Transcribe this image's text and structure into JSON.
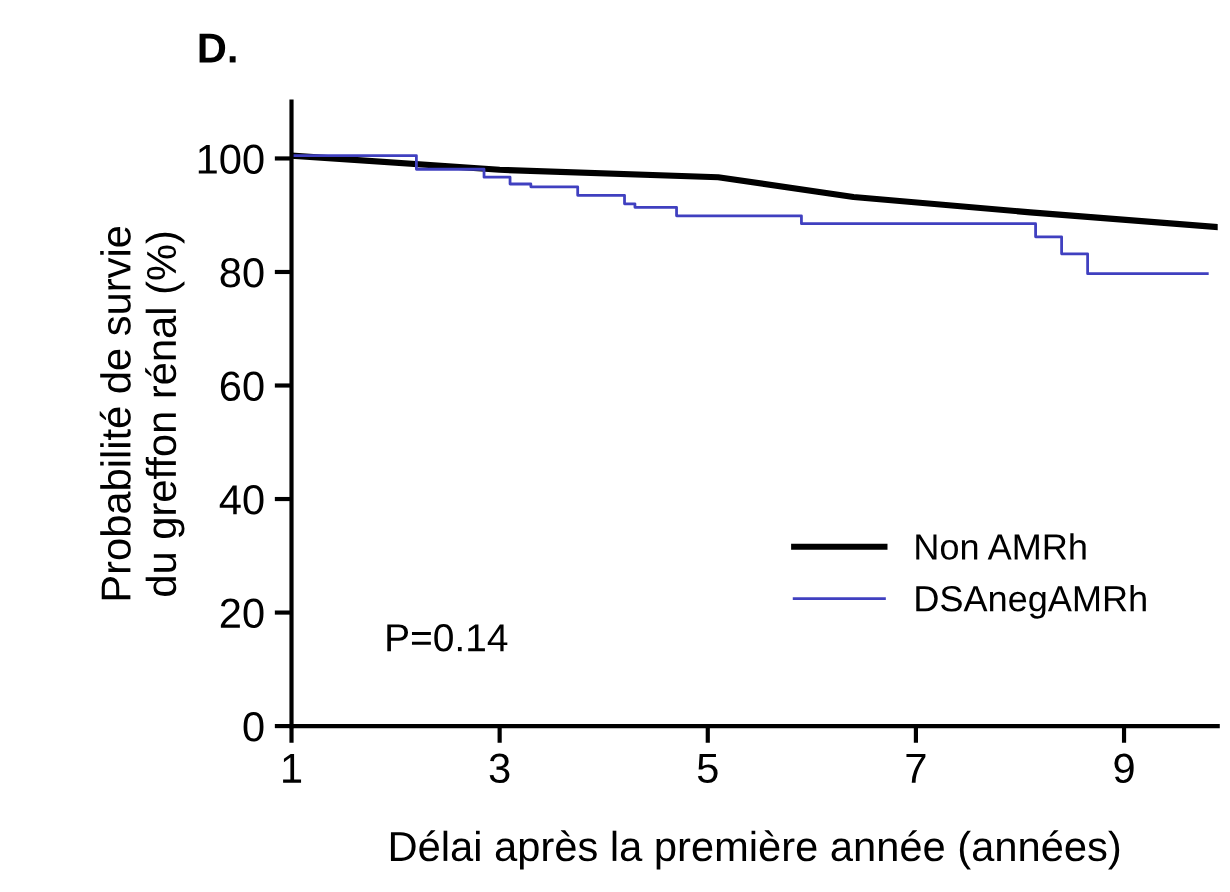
{
  "chart_data": {
    "type": "step",
    "title": "D.",
    "xlabel": "Délai après la première année (années)",
    "ylabel": "Probabilité de survie\ndu greffon rénal (%)",
    "xlim": [
      1,
      9.9
    ],
    "ylim": [
      0,
      110
    ],
    "xticks": [
      1,
      3,
      5,
      7,
      9
    ],
    "yticks": [
      0,
      20,
      40,
      60,
      80,
      100
    ],
    "grid": false,
    "legend": "bottom right",
    "marker": "none",
    "annotations": [
      "P=0.14"
    ],
    "series": [
      {
        "name": "Non AMRh",
        "type": "line",
        "color": "#000000",
        "x": [
          1,
          3,
          5.1,
          6.4,
          8.1,
          9.9
        ],
        "values": [
          100.5,
          98,
          96.7,
          93.2,
          90.5,
          87.9
        ]
      },
      {
        "name": "DSAnegAMRh",
        "color": "#4040c0",
        "x": [
          1,
          2.2,
          2.85,
          3.1,
          3.3,
          3.75,
          4.2,
          4.3,
          4.7,
          5.9,
          8.15,
          8.4,
          8.65,
          9.8
        ],
        "values": [
          100.5,
          98.1,
          96.7,
          95.5,
          95,
          93.5,
          92,
          91.4,
          89.9,
          88.5,
          86.2,
          83.2,
          79.7,
          79.7
        ]
      }
    ]
  }
}
